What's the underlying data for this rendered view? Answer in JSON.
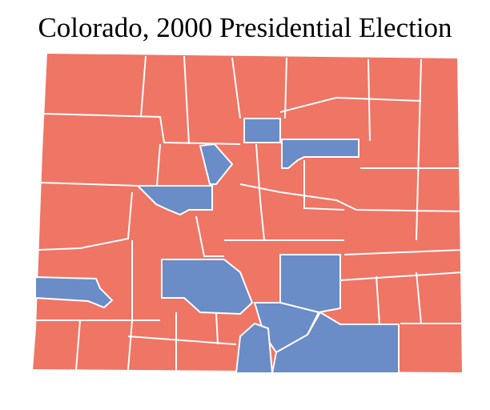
{
  "title": "Colorado, 2000 Presidential Election"
}
